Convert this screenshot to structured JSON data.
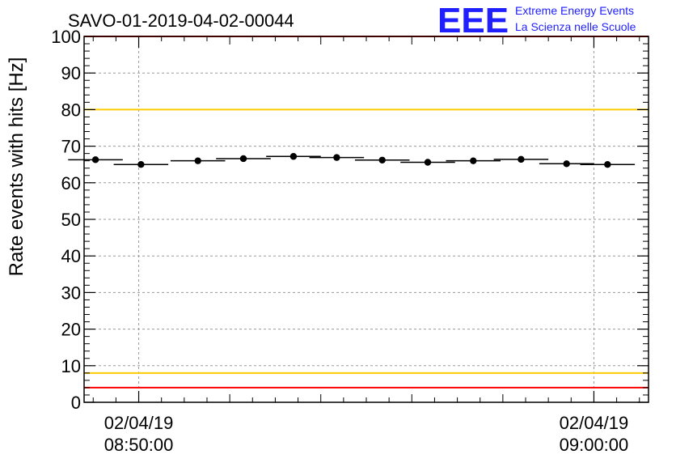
{
  "chart_data": {
    "type": "scatter",
    "title": "SAVO-01-2019-04-02-00044",
    "ylabel": "Rate events with hits [Hz]",
    "xlabel": "",
    "ylim": [
      0,
      100
    ],
    "y_major_ticks": [
      0,
      10,
      20,
      30,
      40,
      50,
      60,
      70,
      80,
      90,
      100
    ],
    "x_tick_labels": [
      {
        "date": "02/04/19",
        "time": "08:50:00",
        "minutes": 10.0
      },
      {
        "date": "02/04/19",
        "time": "09:00:00",
        "minutes": 20.0
      }
    ],
    "x_range_minutes": [
      8.8,
      21.2
    ],
    "series": [
      {
        "name": "rate",
        "x_minutes": [
          9.05,
          10.05,
          11.3,
          12.3,
          13.4,
          14.35,
          15.35,
          16.35,
          17.35,
          18.4,
          19.4,
          20.3
        ],
        "bin_half_width_minutes": 0.6,
        "values": [
          66.3,
          65.0,
          66.0,
          66.6,
          67.2,
          66.9,
          66.2,
          65.6,
          66.0,
          66.4,
          65.2,
          65.0
        ],
        "errors": [
          0.8,
          0.8,
          0.8,
          0.8,
          0.8,
          0.8,
          0.8,
          0.8,
          0.8,
          0.8,
          0.8,
          0.8
        ]
      }
    ],
    "reference_lines": [
      {
        "name": "upper-limit",
        "value": 100,
        "color": "#ff0000"
      },
      {
        "name": "upper-warning",
        "value": 80,
        "color": "#ffcc00"
      },
      {
        "name": "lower-warning",
        "value": 8,
        "color": "#ffcc00"
      },
      {
        "name": "lower-limit",
        "value": 4,
        "color": "#ff0000"
      }
    ],
    "grid": true
  },
  "brand": {
    "logo_text": "EEE",
    "line1": "Extreme Energy Events",
    "line2": "La Scienza nelle Scuole",
    "color": "#1f1fff"
  }
}
